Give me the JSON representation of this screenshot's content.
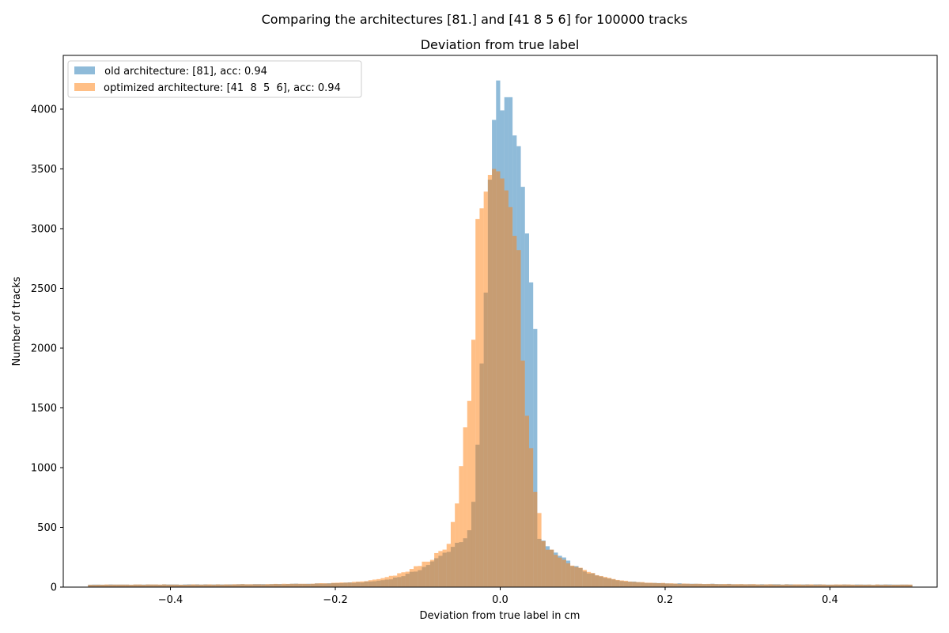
{
  "chart_data": {
    "type": "histogram",
    "suptitle": "Comparing the architectures [81.] and [41  8  5  6] for 100000 tracks",
    "title": "Deviation from true label",
    "xlabel": "Deviation from true label in cm",
    "ylabel": "Number of tracks",
    "xlim": [
      -0.53,
      0.53
    ],
    "ylim": [
      0,
      4450
    ],
    "xticks": [
      -0.4,
      -0.2,
      0.0,
      0.2,
      0.4
    ],
    "xtick_labels": [
      "−0.4",
      "−0.2",
      "0.0",
      "0.2",
      "0.4"
    ],
    "yticks": [
      0,
      500,
      1000,
      1500,
      2000,
      2500,
      3000,
      3500,
      4000
    ],
    "yticks_labels": [
      "0",
      "500",
      "1000",
      "1500",
      "2000",
      "2500",
      "3000",
      "3500",
      "4000"
    ],
    "bin_range": [
      -0.5,
      0.5
    ],
    "bin_count": 200,
    "legend_placement": "upper-left",
    "series": [
      {
        "name": " old architecture: [81], acc: 0.94",
        "color": "#1f77b4",
        "alpha": 0.5,
        "profile": {
          "peak": 4240,
          "peak_at": 0.0,
          "core_sigma": 0.017,
          "mid_amp": 450,
          "mid_sigma": 0.055,
          "tail_amp": 110,
          "tail_decay": 0.09,
          "floor": 20
        },
        "highlights": [
          {
            "x": -0.0075,
            "value": 3910
          },
          {
            "x": -0.0025,
            "value": 4240
          },
          {
            "x": 0.0025,
            "value": 3990
          },
          {
            "x": 0.0075,
            "value": 4100
          },
          {
            "x": 0.0125,
            "value": 4100
          },
          {
            "x": 0.0175,
            "value": 3780
          },
          {
            "x": 0.0225,
            "value": 3690
          },
          {
            "x": 0.0275,
            "value": 3350
          },
          {
            "x": 0.0325,
            "value": 2960
          },
          {
            "x": 0.0375,
            "value": 2550
          },
          {
            "x": 0.0425,
            "value": 2160
          }
        ]
      },
      {
        "name": "optimized architecture: [41  8  5  6], acc: 0.94",
        "color": "#ff7f0e",
        "alpha": 0.5,
        "profile": {
          "peak": 3500,
          "peak_at": -0.004,
          "core_sigma": 0.027,
          "mid_amp": 420,
          "mid_sigma": 0.06,
          "tail_amp": 110,
          "tail_decay": 0.09,
          "floor": 20
        },
        "highlights": [
          {
            "x": -0.0275,
            "value": 3080
          },
          {
            "x": -0.0225,
            "value": 3170
          },
          {
            "x": -0.0175,
            "value": 3310
          },
          {
            "x": -0.0125,
            "value": 3450
          },
          {
            "x": -0.0075,
            "value": 3500
          },
          {
            "x": -0.0025,
            "value": 3480
          },
          {
            "x": 0.0025,
            "value": 3420
          },
          {
            "x": 0.0075,
            "value": 3320
          },
          {
            "x": 0.0125,
            "value": 3180
          },
          {
            "x": 0.0175,
            "value": 2940
          },
          {
            "x": 0.0225,
            "value": 2820
          }
        ]
      }
    ]
  }
}
